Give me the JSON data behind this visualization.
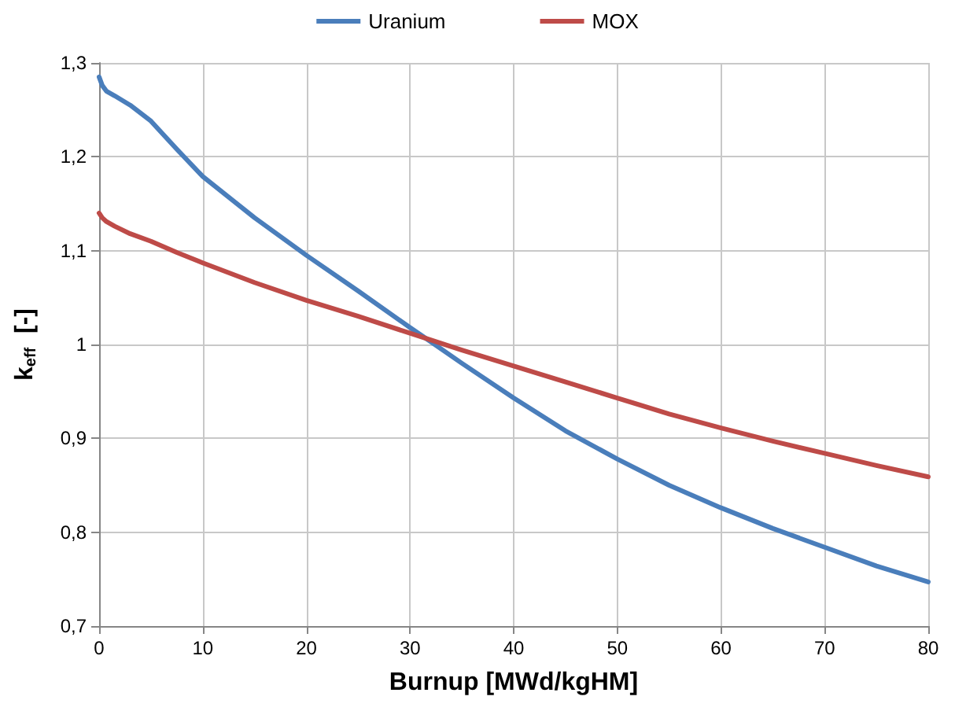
{
  "chart_data": {
    "type": "line",
    "xlabel": "Burnup [MWd/kgHM]",
    "ylabel": "k$_{eff}$  [-]",
    "series": [
      {
        "name": "Uranium",
        "color": "#4a7ebb",
        "x": [
          0,
          0.3,
          0.7,
          1.5,
          3,
          5,
          7.5,
          10,
          15,
          20,
          25,
          30,
          32,
          35,
          40,
          45,
          50,
          55,
          60,
          65,
          70,
          75,
          80
        ],
        "values": [
          1.285,
          1.276,
          1.27,
          1.265,
          1.255,
          1.238,
          1.208,
          1.179,
          1.135,
          1.095,
          1.057,
          1.018,
          1.003,
          0.98,
          0.943,
          0.908,
          0.878,
          0.85,
          0.826,
          0.804,
          0.784,
          0.764,
          0.747
        ]
      },
      {
        "name": "MOX",
        "color": "#be4b48",
        "x": [
          0,
          0.3,
          0.7,
          1.5,
          3,
          5,
          7.5,
          10,
          15,
          20,
          25,
          30,
          35,
          40,
          45,
          50,
          55,
          60,
          65,
          70,
          75,
          80
        ],
        "values": [
          1.14,
          1.135,
          1.131,
          1.126,
          1.118,
          1.11,
          1.098,
          1.087,
          1.066,
          1.047,
          1.03,
          1.012,
          0.994,
          0.977,
          0.96,
          0.943,
          0.926,
          0.911,
          0.897,
          0.884,
          0.871,
          0.859
        ]
      }
    ],
    "xlim": [
      0,
      80
    ],
    "xticks": [
      0,
      10,
      20,
      30,
      40,
      50,
      60,
      70,
      80
    ],
    "ylim": [
      0.7,
      1.3
    ],
    "yticks": [
      {
        "value": 0.7,
        "label": "0,7"
      },
      {
        "value": 0.8,
        "label": "0,8"
      },
      {
        "value": 0.9,
        "label": "0,9"
      },
      {
        "value": 1,
        "label": "1"
      },
      {
        "value": 1.1,
        "label": "1,1"
      },
      {
        "value": 1.2,
        "label": "1,2"
      },
      {
        "value": 1.3,
        "label": "1,3"
      }
    ],
    "grid": true,
    "legend": "top",
    "marker": "none",
    "line_style": "solid"
  }
}
